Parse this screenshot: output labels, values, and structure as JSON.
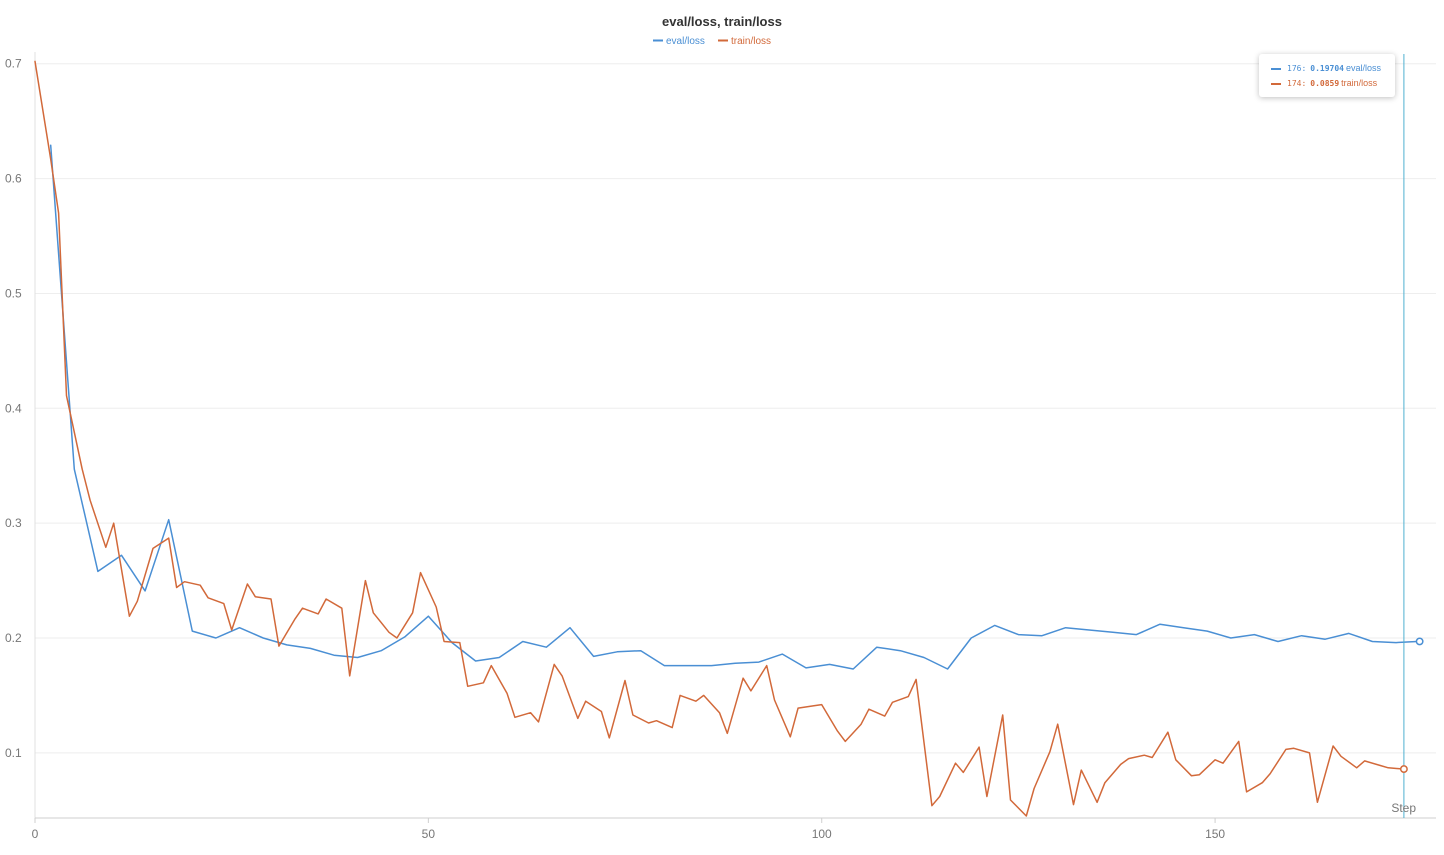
{
  "chart_data": {
    "type": "line",
    "title": "eval/loss, train/loss",
    "xlabel": "Step",
    "ylabel": "",
    "xlim": [
      0,
      176
    ],
    "ylim": [
      0.045,
      0.705
    ],
    "x_ticks": [
      0,
      50,
      100,
      150
    ],
    "y_ticks": [
      0.1,
      0.2,
      0.3,
      0.4,
      0.5,
      0.6,
      0.7
    ],
    "x_tick_labels": [
      "0",
      "50",
      "100",
      "150"
    ],
    "y_tick_labels": [
      "0.1",
      "0.2",
      "0.3",
      "0.4",
      "0.5",
      "0.6",
      "0.7"
    ],
    "grid": true,
    "legend_position": "top-center",
    "series": [
      {
        "name": "eval/loss",
        "color": "#4a8fd4",
        "x": [
          2,
          5,
          8,
          11,
          14,
          17,
          20,
          23,
          26,
          29,
          32,
          35,
          38,
          41,
          44,
          47,
          50,
          53,
          56,
          59,
          62,
          65,
          68,
          71,
          74,
          77,
          80,
          83,
          86,
          89,
          92,
          95,
          98,
          101,
          104,
          107,
          110,
          113,
          116,
          119,
          122,
          125,
          128,
          131,
          134,
          137,
          140,
          143,
          146,
          149,
          152,
          155,
          158,
          161,
          164,
          167,
          170,
          173,
          176
        ],
        "y": [
          0.629,
          0.347,
          0.258,
          0.272,
          0.241,
          0.303,
          0.206,
          0.2,
          0.209,
          0.2,
          0.194,
          0.191,
          0.185,
          0.183,
          0.189,
          0.201,
          0.219,
          0.196,
          0.18,
          0.183,
          0.197,
          0.192,
          0.209,
          0.184,
          0.188,
          0.189,
          0.176,
          0.176,
          0.176,
          0.178,
          0.179,
          0.186,
          0.174,
          0.177,
          0.173,
          0.192,
          0.189,
          0.183,
          0.173,
          0.2,
          0.211,
          0.203,
          0.202,
          0.209,
          0.207,
          0.205,
          0.203,
          0.212,
          0.209,
          0.206,
          0.2,
          0.203,
          0.197,
          0.202,
          0.199,
          0.204,
          0.197,
          0.196,
          0.19704
        ]
      },
      {
        "name": "train/loss",
        "color": "#d2693a",
        "x": [
          0,
          2,
          3,
          4,
          6,
          7,
          9,
          10,
          12,
          13,
          15,
          17,
          18,
          19,
          21,
          22,
          24,
          25,
          27,
          28,
          30,
          31,
          33,
          34,
          36,
          37,
          39,
          40,
          42,
          43,
          45,
          46,
          48,
          49,
          51,
          52,
          54,
          55,
          57,
          58,
          60,
          61,
          63,
          64,
          66,
          67,
          69,
          70,
          72,
          73,
          75,
          76,
          78,
          79,
          81,
          82,
          84,
          85,
          87,
          88,
          90,
          91,
          93,
          94,
          96,
          97,
          99,
          100,
          102,
          103,
          105,
          106,
          108,
          109,
          111,
          112,
          114,
          115,
          117,
          118,
          120,
          121,
          123,
          124,
          126,
          127,
          129,
          130,
          132,
          133,
          135,
          136,
          138,
          139,
          141,
          142,
          144,
          145,
          147,
          148,
          150,
          151,
          153,
          154,
          156,
          157,
          159,
          160,
          162,
          163,
          165,
          166,
          168,
          169,
          171,
          172,
          174
        ],
        "y": [
          0.702,
          0.617,
          0.57,
          0.411,
          0.347,
          0.32,
          0.279,
          0.3,
          0.219,
          0.232,
          0.278,
          0.287,
          0.244,
          0.249,
          0.246,
          0.235,
          0.23,
          0.207,
          0.247,
          0.236,
          0.234,
          0.193,
          0.216,
          0.226,
          0.221,
          0.234,
          0.226,
          0.167,
          0.25,
          0.222,
          0.205,
          0.2,
          0.222,
          0.257,
          0.227,
          0.197,
          0.196,
          0.158,
          0.161,
          0.176,
          0.152,
          0.131,
          0.135,
          0.127,
          0.177,
          0.167,
          0.13,
          0.145,
          0.136,
          0.113,
          0.163,
          0.133,
          0.126,
          0.128,
          0.122,
          0.15,
          0.145,
          0.15,
          0.135,
          0.117,
          0.165,
          0.154,
          0.176,
          0.146,
          0.114,
          0.139,
          0.141,
          0.142,
          0.119,
          0.11,
          0.125,
          0.138,
          0.132,
          0.144,
          0.149,
          0.164,
          0.054,
          0.062,
          0.091,
          0.083,
          0.105,
          0.062,
          0.133,
          0.059,
          0.045,
          0.069,
          0.101,
          0.125,
          0.055,
          0.085,
          0.057,
          0.074,
          0.09,
          0.095,
          0.098,
          0.096,
          0.118,
          0.094,
          0.08,
          0.081,
          0.094,
          0.091,
          0.11,
          0.066,
          0.074,
          0.082,
          0.103,
          0.104,
          0.1,
          0.057,
          0.106,
          0.097,
          0.087,
          0.093,
          0.089,
          0.087,
          0.0859
        ]
      }
    ],
    "hover": {
      "step_line_x": 174,
      "entries": [
        {
          "step": "176:",
          "value": "0.19704",
          "name": "eval/loss",
          "color": "#4a8fd4"
        },
        {
          "step": "174:",
          "value": "0.0859",
          "name": "train/loss",
          "color": "#d2693a"
        }
      ]
    }
  }
}
